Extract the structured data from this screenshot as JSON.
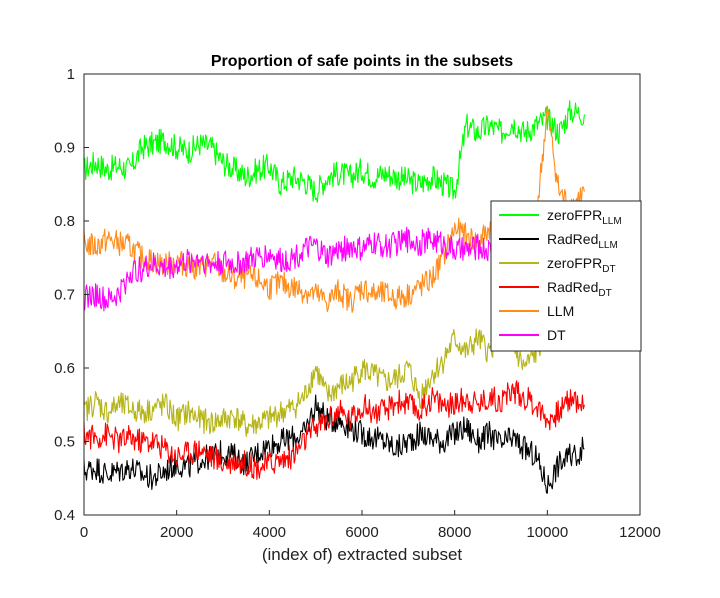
{
  "chart_data": {
    "type": "line",
    "title": "Proportion of safe points in the subsets",
    "xlabel": "(index of) extracted subset",
    "ylabel": "",
    "xlim": [
      0,
      12000
    ],
    "ylim": [
      0.4,
      1.0
    ],
    "xticks": [
      0,
      2000,
      4000,
      6000,
      8000,
      10000,
      12000
    ],
    "yticks": [
      0.4,
      0.5,
      0.6,
      0.7,
      0.8,
      0.9,
      1
    ],
    "xtick_labels": [
      "0",
      "2000",
      "4000",
      "6000",
      "8000",
      "10000",
      "12000"
    ],
    "ytick_labels": [
      "0.4",
      "0.5",
      "0.6",
      "0.7",
      "0.8",
      "0.9",
      "1"
    ],
    "grid": false,
    "legend_position": "right",
    "x": [
      0,
      250,
      500,
      750,
      1000,
      1250,
      1500,
      1750,
      2000,
      2250,
      2500,
      2750,
      3000,
      3250,
      3500,
      3750,
      4000,
      4250,
      4500,
      4750,
      5000,
      5250,
      5500,
      5750,
      6000,
      6250,
      6500,
      6750,
      7000,
      7250,
      7500,
      7750,
      8000,
      8250,
      8500,
      8750,
      9000,
      9250,
      9500,
      9750,
      10000,
      10250,
      10500,
      10800
    ],
    "series": [
      {
        "name": "zeroFPR",
        "name_sub": "LLM",
        "color": "#00ff00",
        "values": [
          0.87,
          0.88,
          0.87,
          0.875,
          0.87,
          0.9,
          0.905,
          0.91,
          0.9,
          0.895,
          0.905,
          0.9,
          0.88,
          0.87,
          0.86,
          0.87,
          0.875,
          0.85,
          0.86,
          0.855,
          0.84,
          0.86,
          0.865,
          0.86,
          0.87,
          0.86,
          0.865,
          0.86,
          0.855,
          0.85,
          0.86,
          0.85,
          0.84,
          0.93,
          0.92,
          0.93,
          0.92,
          0.935,
          0.92,
          0.93,
          0.94,
          0.92,
          0.95,
          0.945
        ]
      },
      {
        "name": "RadRed",
        "name_sub": "LLM",
        "color": "#000000",
        "values": [
          0.46,
          0.465,
          0.455,
          0.46,
          0.465,
          0.455,
          0.45,
          0.46,
          0.47,
          0.465,
          0.475,
          0.48,
          0.485,
          0.48,
          0.47,
          0.485,
          0.495,
          0.5,
          0.505,
          0.51,
          0.55,
          0.53,
          0.53,
          0.52,
          0.51,
          0.505,
          0.5,
          0.49,
          0.5,
          0.51,
          0.505,
          0.5,
          0.51,
          0.52,
          0.5,
          0.51,
          0.495,
          0.505,
          0.49,
          0.48,
          0.44,
          0.47,
          0.48,
          0.49
        ]
      },
      {
        "name": "zeroFPR",
        "name_sub": "DT",
        "color": "#b5b519",
        "values": [
          0.54,
          0.555,
          0.54,
          0.55,
          0.545,
          0.54,
          0.545,
          0.55,
          0.53,
          0.54,
          0.53,
          0.525,
          0.53,
          0.535,
          0.52,
          0.525,
          0.53,
          0.54,
          0.545,
          0.56,
          0.6,
          0.56,
          0.575,
          0.58,
          0.6,
          0.59,
          0.58,
          0.585,
          0.6,
          0.56,
          0.59,
          0.61,
          0.64,
          0.62,
          0.64,
          0.62,
          0.66,
          0.63,
          0.6,
          0.62,
          0.65,
          0.64,
          0.67,
          0.68
        ]
      },
      {
        "name": "RadRed",
        "name_sub": "DT",
        "color": "#ff0000",
        "values": [
          0.51,
          0.505,
          0.51,
          0.5,
          0.505,
          0.5,
          0.5,
          0.49,
          0.48,
          0.485,
          0.49,
          0.48,
          0.47,
          0.475,
          0.47,
          0.465,
          0.47,
          0.475,
          0.48,
          0.5,
          0.52,
          0.53,
          0.54,
          0.53,
          0.55,
          0.54,
          0.54,
          0.555,
          0.55,
          0.54,
          0.56,
          0.55,
          0.55,
          0.56,
          0.55,
          0.56,
          0.555,
          0.57,
          0.56,
          0.55,
          0.53,
          0.54,
          0.56,
          0.55
        ]
      },
      {
        "name": "LLM",
        "name_sub": "",
        "color": "#ff8c1a",
        "values": [
          0.77,
          0.765,
          0.775,
          0.77,
          0.765,
          0.75,
          0.745,
          0.74,
          0.745,
          0.74,
          0.735,
          0.745,
          0.73,
          0.72,
          0.725,
          0.72,
          0.71,
          0.715,
          0.71,
          0.705,
          0.7,
          0.69,
          0.705,
          0.69,
          0.71,
          0.7,
          0.7,
          0.695,
          0.7,
          0.71,
          0.72,
          0.75,
          0.79,
          0.78,
          0.77,
          0.79,
          0.8,
          0.79,
          0.77,
          0.8,
          0.95,
          0.84,
          0.82,
          0.84
        ]
      },
      {
        "name": "DT",
        "name_sub": "",
        "color": "#ff00ff",
        "values": [
          0.695,
          0.7,
          0.69,
          0.7,
          0.73,
          0.735,
          0.74,
          0.735,
          0.74,
          0.745,
          0.75,
          0.74,
          0.745,
          0.74,
          0.745,
          0.75,
          0.755,
          0.745,
          0.75,
          0.76,
          0.765,
          0.75,
          0.76,
          0.765,
          0.76,
          0.77,
          0.765,
          0.77,
          0.775,
          0.77,
          0.775,
          0.77,
          0.76,
          0.76,
          0.765,
          0.76,
          0.77,
          0.77,
          0.765,
          0.77,
          0.76,
          0.765,
          0.77,
          0.76
        ]
      }
    ]
  }
}
